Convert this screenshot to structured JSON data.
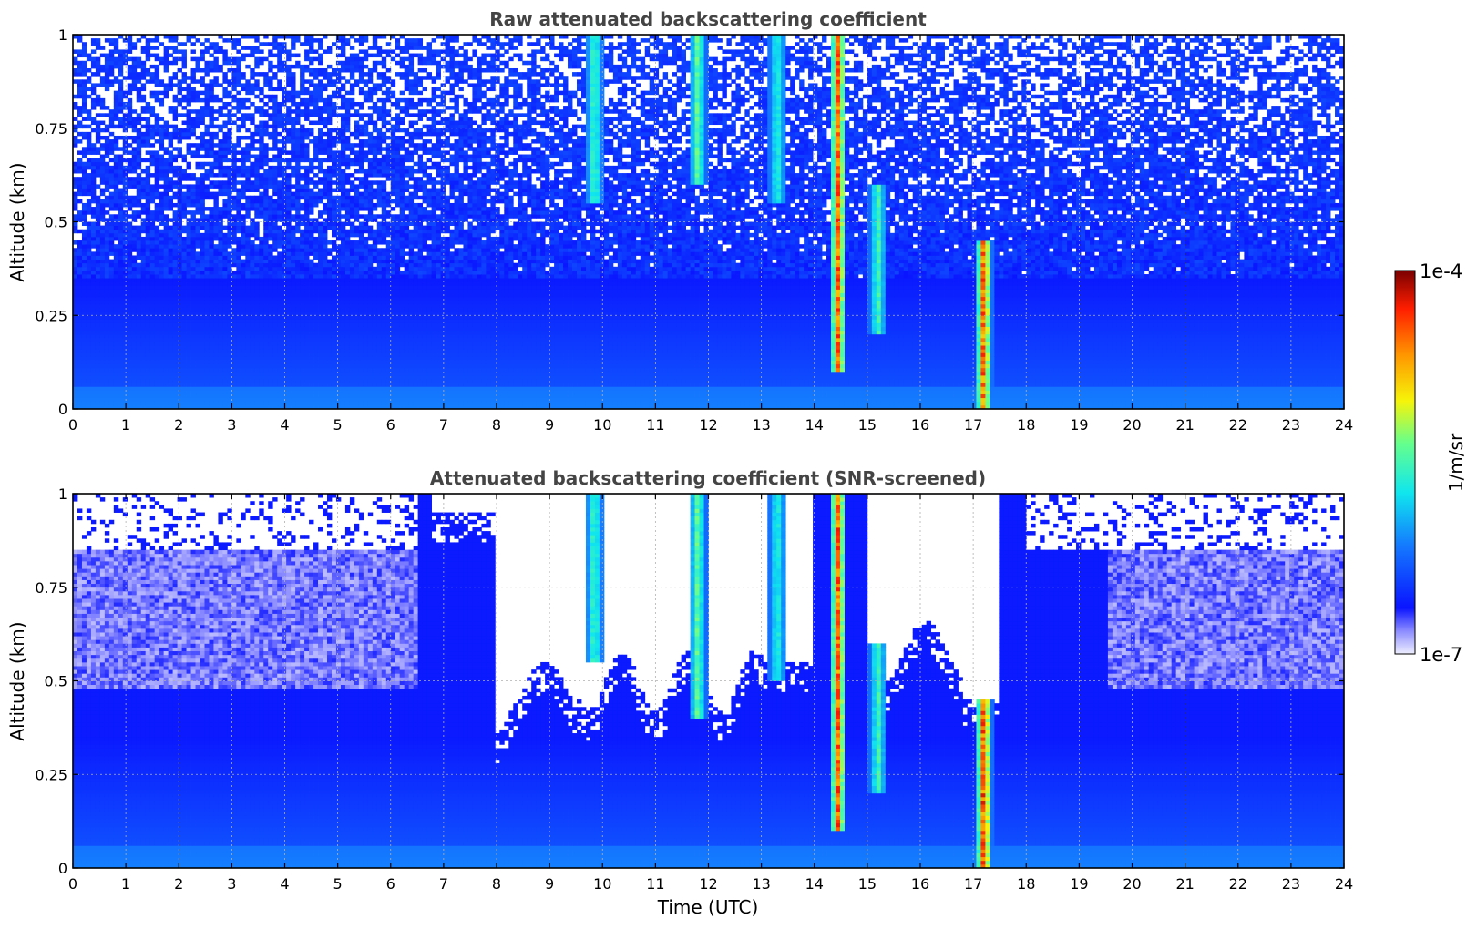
{
  "chart_data": [
    {
      "type": "heatmap",
      "title": "Raw attenuated backscattering coefficient",
      "xlabel": "",
      "ylabel": "Altitude (km)",
      "xlim": [
        0,
        24
      ],
      "ylim": [
        0,
        1
      ],
      "xticks": [
        "0",
        "1",
        "2",
        "3",
        "4",
        "5",
        "6",
        "7",
        "8",
        "9",
        "10",
        "11",
        "12",
        "13",
        "14",
        "15",
        "16",
        "17",
        "18",
        "19",
        "20",
        "21",
        "22",
        "23",
        "24"
      ],
      "yticks": [
        "0",
        "0.25",
        "0.5",
        "0.75",
        "1"
      ],
      "ytick_values": [
        0,
        0.25,
        0.5,
        0.75,
        1
      ],
      "grid": true,
      "colorscale": "jet",
      "screened": false,
      "features": [
        {
          "time": 9.85,
          "top": 1.0,
          "bottom": 0.55,
          "peak": 0.55
        },
        {
          "time": 11.8,
          "top": 1.0,
          "bottom": 0.6,
          "peak": 0.6
        },
        {
          "time": 13.3,
          "top": 1.0,
          "bottom": 0.55,
          "peak": 0.5
        },
        {
          "time": 14.45,
          "top": 1.0,
          "bottom": 0.1,
          "peak": 0.95
        },
        {
          "time": 15.2,
          "top": 0.6,
          "bottom": 0.2,
          "peak": 0.55
        },
        {
          "time": 17.2,
          "top": 0.45,
          "bottom": 0.0,
          "peak": 0.97
        }
      ]
    },
    {
      "type": "heatmap",
      "title": "Attenuated backscattering coefficient (SNR-screened)",
      "xlabel": "Time (UTC)",
      "ylabel": "Altitude (km)",
      "xlim": [
        0,
        24
      ],
      "ylim": [
        0,
        1
      ],
      "xticks": [
        "0",
        "1",
        "2",
        "3",
        "4",
        "5",
        "6",
        "7",
        "8",
        "9",
        "10",
        "11",
        "12",
        "13",
        "14",
        "15",
        "16",
        "17",
        "18",
        "19",
        "20",
        "21",
        "22",
        "23",
        "24"
      ],
      "yticks": [
        "0",
        "0.25",
        "0.5",
        "0.75",
        "1"
      ],
      "ytick_values": [
        0,
        0.25,
        0.5,
        0.75,
        1
      ],
      "grid": true,
      "colorscale": "jet",
      "screened": true,
      "features": [
        {
          "time": 9.85,
          "top": 1.0,
          "bottom": 0.55,
          "peak": 0.55
        },
        {
          "time": 11.8,
          "top": 1.0,
          "bottom": 0.4,
          "peak": 0.6
        },
        {
          "time": 13.3,
          "top": 1.0,
          "bottom": 0.5,
          "peak": 0.5
        },
        {
          "time": 14.45,
          "top": 1.0,
          "bottom": 0.1,
          "peak": 0.95
        },
        {
          "time": 15.2,
          "top": 0.6,
          "bottom": 0.2,
          "peak": 0.55
        },
        {
          "time": 17.2,
          "top": 0.45,
          "bottom": 0.0,
          "peak": 1.0
        }
      ]
    }
  ],
  "colorbar": {
    "label": "1/m/sr",
    "max_label": "1e-4",
    "min_label": "1e-7",
    "scale": "log"
  }
}
